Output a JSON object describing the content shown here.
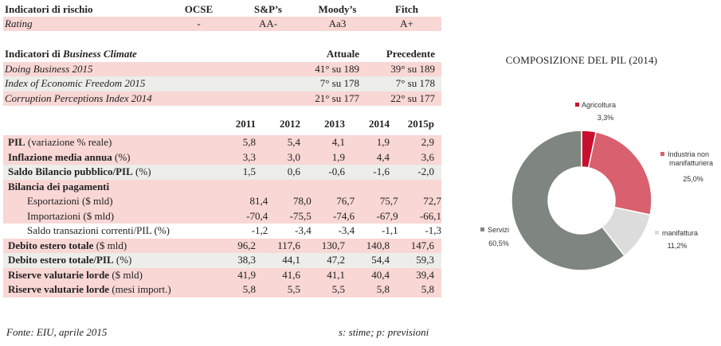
{
  "risk": {
    "header": [
      "Indicatori di rischio",
      "OCSE",
      "S&P’s",
      "Moody’s",
      "Fitch"
    ],
    "rating_label": "Rating",
    "rating_values": [
      "-",
      "AA-",
      "Aa3",
      "A+"
    ]
  },
  "business_climate": {
    "header_prefix": "Indicatori di ",
    "header_italic": "Business Climate",
    "col_current": "Attuale",
    "col_previous": "Precedente",
    "rows": [
      {
        "label": "Doing Business 2015",
        "current": "41° su 189",
        "previous": "39° su 189"
      },
      {
        "label": "Index of Economic Freedom 2015",
        "current": "7° su 178",
        "previous": "7° su 178"
      },
      {
        "label": "Corruption Perceptions Index 2014",
        "current": "21° su 177",
        "previous": "22° su 177"
      }
    ]
  },
  "macro": {
    "years": [
      "2011",
      "2012",
      "2013",
      "2014",
      "2015p"
    ],
    "rows": [
      {
        "label_bold": "PIL",
        "label_rest": " (variazione % reale)",
        "values": [
          "5,8",
          "5,4",
          "4,1",
          "1,9",
          "2,9"
        ],
        "style": "pink"
      },
      {
        "label_bold": "Inflazione media annua",
        "label_rest": " (%)",
        "values": [
          "3,3",
          "3,0",
          "1,9",
          "4,4",
          "3,6"
        ],
        "style": "pink"
      },
      {
        "label_bold": "Saldo Bilancio pubblico/PIL",
        "label_rest": " (%)",
        "values": [
          "1,5",
          "0,6",
          "-0,6",
          "-1,6",
          "-2,0"
        ],
        "style": "grey"
      },
      {
        "label_bold": "Bilancia dei pagamenti",
        "label_rest": "",
        "values": [
          "",
          "",
          "",
          "",
          ""
        ],
        "style": "pink"
      },
      {
        "label_bold": "",
        "label_rest": "Esportazioni ($ mld)",
        "values": [
          "81,4",
          "78,0",
          "76,7",
          "75,7",
          "72,7"
        ],
        "style": "pink",
        "indent": true
      },
      {
        "label_bold": "",
        "label_rest": "Importazioni ($ mld)",
        "values": [
          "-70,4",
          "-75,5",
          "-74,6",
          "-67,9",
          "-66,1"
        ],
        "style": "pink",
        "indent": true
      },
      {
        "label_bold": "",
        "label_rest": "Saldo transazioni correnti/PIL (%)",
        "values": [
          "-1,2",
          "-3,4",
          "-3,4",
          "-1,1",
          "-1,3"
        ],
        "style": "white",
        "indent": true
      },
      {
        "label_bold": "Debito estero totale",
        "label_rest": " ($ mld)",
        "values": [
          "96,2",
          "117,6",
          "130,7",
          "140,8",
          "147,6"
        ],
        "style": "pink"
      },
      {
        "label_bold": "Debito estero totale/PIL",
        "label_rest": " (%)",
        "values": [
          "38,3",
          "44,1",
          "47,2",
          "54,4",
          "59,3"
        ],
        "style": "grey"
      },
      {
        "label_bold": "Riserve valutarie lorde",
        "label_rest": " ($ mld)",
        "values": [
          "41,9",
          "41,6",
          "41,1",
          "40,4",
          "39,4"
        ],
        "style": "pink"
      },
      {
        "label_bold": "Riserve valutarie lorde",
        "label_rest": " (mesi import.)",
        "values": [
          "5,8",
          "5,5",
          "5,5",
          "5,8",
          "5,8"
        ],
        "style": "pink"
      }
    ]
  },
  "footer": {
    "source": "Fonte: EIU, aprile 2015",
    "note": "s: stime; p: previsioni"
  },
  "chart_data": {
    "type": "pie",
    "donut": true,
    "title": "COMPOSIZIONE DEL PIL (2014)",
    "categories": [
      "Agricoltura",
      "Industria non manifatturiera",
      "manifattura",
      "Servizi"
    ],
    "values": [
      3.3,
      25.0,
      11.2,
      60.5
    ],
    "value_labels": [
      "3,3%",
      "25,0%",
      "11,2%",
      "60,5%"
    ],
    "colors": [
      "#c8102e",
      "#d9606e",
      "#dcdcdc",
      "#7f8680"
    ],
    "legend_placement": "labels beside slices"
  }
}
